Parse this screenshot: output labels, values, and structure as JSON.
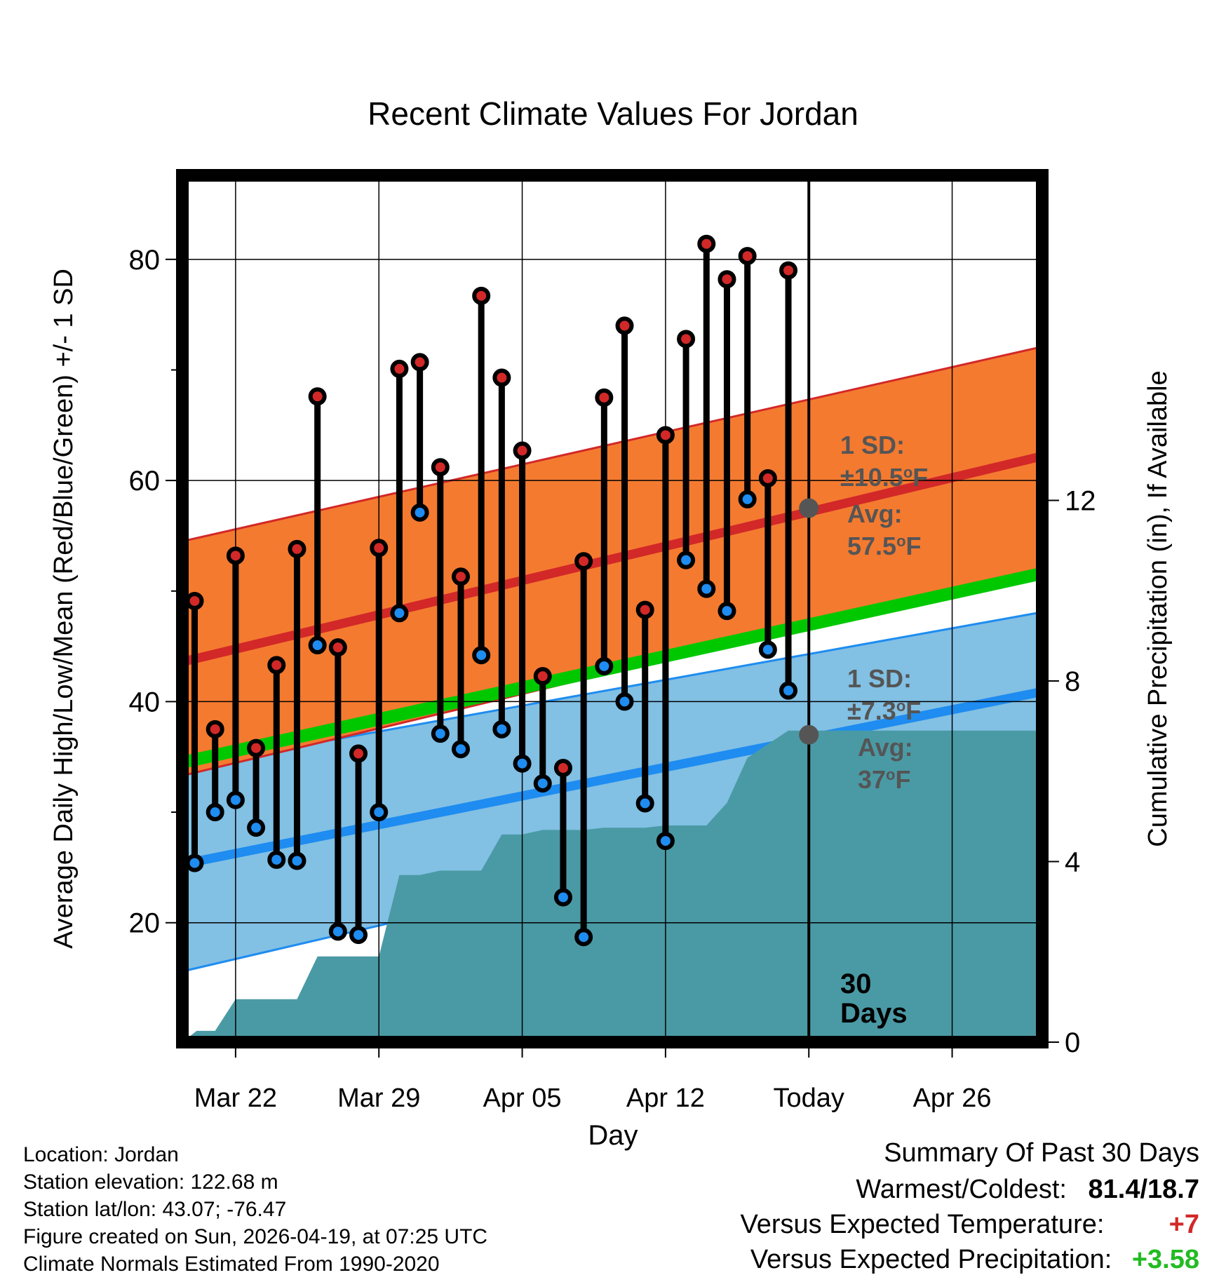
{
  "colors": {
    "high_band": "#f47a30",
    "high_line": "#d22828",
    "low_band": "#82c0e4",
    "low_line": "#1e8cf0",
    "precip": "#4a9aa5",
    "green": "#00c800",
    "high_dot": "#d22828",
    "low_dot": "#1e8cf0",
    "annot": "#555555",
    "warm_text": "#d22828",
    "wet_text": "#22bb22"
  },
  "chart_data": {
    "type": "line",
    "title": "Recent Climate Values For Jordan",
    "xlabel": "Day",
    "ylabel": "Average Daily High/Low/Mean (Red/Blue/Green) +/- 1 SD",
    "y2label": "Cumulative Precipitation (in), If Available",
    "xlim": [
      -2.6,
      39.4
    ],
    "ylim": [
      9.2,
      87.6
    ],
    "y2lim": [
      0,
      19.2
    ],
    "x_ticks": [
      {
        "x": 0,
        "label": "Mar 22"
      },
      {
        "x": 7,
        "label": "Mar 29"
      },
      {
        "x": 14,
        "label": "Apr 05"
      },
      {
        "x": 21,
        "label": "Apr 12"
      },
      {
        "x": 28,
        "label": "Today"
      },
      {
        "x": 35,
        "label": "Apr 26"
      }
    ],
    "y_ticks": [
      20,
      40,
      60,
      80
    ],
    "y_minor_ticks": [
      30,
      50,
      70
    ],
    "y2_ticks": [
      0,
      4,
      8,
      12
    ],
    "normals": {
      "x": [
        -2.6,
        39.4
      ],
      "high_mean": [
        43.6,
        62.2
      ],
      "high_upper": [
        54.5,
        72.1
      ],
      "high_lower": [
        33.3,
        52.0
      ],
      "low_mean": [
        25.3,
        40.9
      ],
      "low_upper": [
        34.1,
        48.1
      ],
      "low_lower": [
        15.6,
        33.7
      ],
      "mean": [
        34.5,
        51.6
      ]
    },
    "days": {
      "x": [
        -2,
        -1,
        0,
        1,
        2,
        3,
        4,
        5,
        6,
        7,
        8,
        9,
        10,
        11,
        12,
        13,
        14,
        15,
        16,
        17,
        18,
        19,
        20,
        21,
        22,
        23,
        24,
        25,
        26,
        27
      ],
      "high": [
        49.1,
        37.5,
        53.2,
        35.8,
        43.3,
        53.8,
        67.6,
        44.9,
        35.3,
        53.9,
        70.1,
        70.7,
        61.2,
        51.3,
        76.7,
        69.3,
        62.7,
        42.3,
        34.0,
        52.7,
        67.5,
        74.0,
        48.3,
        64.1,
        72.8,
        81.4,
        78.2,
        80.3,
        60.2,
        79.0
      ],
      "low": [
        25.4,
        30.0,
        31.1,
        28.6,
        25.7,
        25.6,
        45.1,
        19.2,
        18.9,
        30.0,
        48.0,
        57.1,
        37.1,
        35.7,
        44.2,
        37.5,
        34.4,
        32.6,
        22.3,
        18.7,
        43.2,
        40.0,
        30.8,
        27.4,
        52.8,
        50.2,
        48.2,
        58.3,
        44.7,
        41.0
      ]
    },
    "precip": {
      "x": [
        -2.6,
        -1.9,
        -1.0,
        0.0,
        1.0,
        2.0,
        3.0,
        4.0,
        5.0,
        6.0,
        7.0,
        8.0,
        9.0,
        10.0,
        11.0,
        12.0,
        13.0,
        14.0,
        15.0,
        16.0,
        17.0,
        18.0,
        19.0,
        20.0,
        21.0,
        22.0,
        23.0,
        24.0,
        25.0,
        26.0,
        27.0,
        28.0,
        39.4
      ],
      "y": [
        0.0,
        0.25,
        0.25,
        0.95,
        0.95,
        0.95,
        0.95,
        1.9,
        1.9,
        1.9,
        1.9,
        3.7,
        3.7,
        3.8,
        3.8,
        3.8,
        4.6,
        4.6,
        4.7,
        4.7,
        4.7,
        4.75,
        4.75,
        4.75,
        4.8,
        4.8,
        4.8,
        5.3,
        6.3,
        6.6,
        6.9,
        6.9,
        6.9
      ]
    },
    "today_x": 28,
    "annotations": {
      "high_sd_label": "1 SD:",
      "high_sd_value": "±10.5",
      "high_avg_label": "Avg:",
      "high_avg_value": "57.5",
      "high_avg": 57.5,
      "low_sd_label": "1 SD:",
      "low_sd_value": "±7.3",
      "low_avg_label": "Avg:",
      "low_avg_value": "37",
      "low_avg": 37.0,
      "degree_mark": "o",
      "unit": "F",
      "period_number": "30",
      "period_word": "Days"
    }
  },
  "footer": {
    "location": "Location: Jordan",
    "elevation": "Station elevation: 122.68 m",
    "latlon": "Station lat/lon: 43.07; -76.47",
    "created": "Figure created on Sun, 2026-04-19, at 07:25 UTC",
    "normals": "Climate Normals Estimated From 1990-2020"
  },
  "summary": {
    "title": "Summary Of Past 30 Days",
    "warmest_label": "Warmest/Coldest:",
    "warmest_value": "81.4/18.7",
    "temp_label": "Versus Expected Temperature:",
    "temp_value": "+7",
    "precip_label": "Versus Expected Precipitation:",
    "precip_value": "+3.58"
  }
}
